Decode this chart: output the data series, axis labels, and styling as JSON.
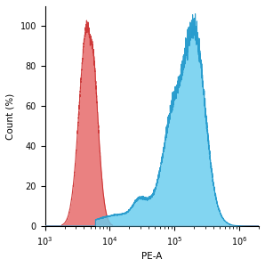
{
  "title": "",
  "xlabel": "PE-A",
  "ylabel": "Count (%)",
  "xlim": [
    1000,
    2000000
  ],
  "ylim": [
    0,
    110
  ],
  "yticks": [
    0,
    20,
    40,
    60,
    80,
    100
  ],
  "background_color": "#ffffff",
  "red_color": "#e87070",
  "red_edge_color": "#cc3333",
  "blue_color": "#66ccee",
  "blue_edge_color": "#2299cc",
  "red_peak_log": 3.65,
  "red_peak_height": 100,
  "red_sigma": 0.12,
  "blue_peak_log": 5.15,
  "blue_peak_height": 100
}
